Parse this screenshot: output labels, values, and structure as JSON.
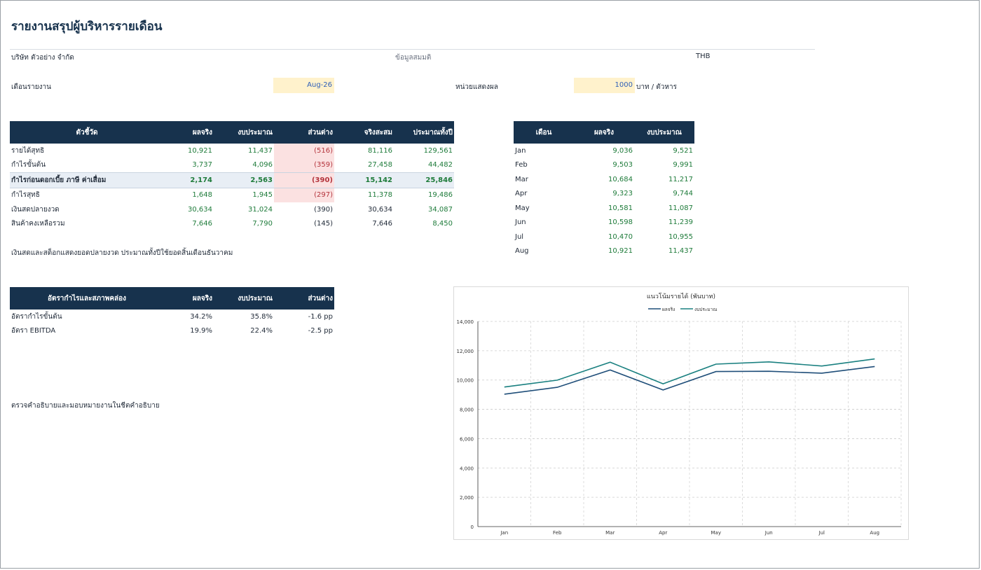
{
  "report": {
    "title": "รายงานสรุปผู้บริหารรายเดือน",
    "company": "บริษัท ตัวอย่าง จำกัด",
    "assumption_label": "ข้อมูลสมมติ",
    "currency": "THB",
    "month_label": "เดือนรายงาน",
    "month_value": "Aug-26",
    "unit_label": "หน่วยแสดงผล",
    "unit_value": "1000",
    "unit_suffix": "บาท / ตัวหาร"
  },
  "kpi": {
    "headers": [
      "ตัวชี้วัด",
      "ผลจริง",
      "งบประมาณ",
      "ส่วนต่าง",
      "จริงสะสม",
      "ประมาณทั้งปี"
    ],
    "rows": [
      {
        "name": "รายได้สุทธิ",
        "cells": [
          "10,921",
          "11,437",
          "(516)",
          "81,116",
          "129,561"
        ]
      },
      {
        "name": "กำไรขั้นต้น",
        "cells": [
          "3,737",
          "4,096",
          "(359)",
          "27,458",
          "44,482"
        ]
      },
      {
        "name": "กำไรก่อนดอกเบี้ย ภาษี ค่าเสื่อม",
        "cells": [
          "2,174",
          "2,563",
          "(390)",
          "15,142",
          "25,846"
        ]
      },
      {
        "name": "กำไรสุทธิ",
        "cells": [
          "1,648",
          "1,945",
          "(297)",
          "11,378",
          "19,486"
        ]
      },
      {
        "name": "เงินสดปลายงวด",
        "cells": [
          "30,634",
          "31,024",
          "(390)",
          "30,634",
          "34,087"
        ]
      },
      {
        "name": "สินค้าคงเหลือรวม",
        "cells": [
          "7,646",
          "7,790",
          "(145)",
          "7,646",
          "8,450"
        ]
      }
    ],
    "note": "เงินสดและสต็อกแสดงยอดปลายงวด ประมาณทั้งปีใช้ยอดสิ้นเดือนธันวาคม"
  },
  "monthly": {
    "headers": [
      "เดือน",
      "ผลจริง",
      "งบประมาณ"
    ],
    "rows": [
      {
        "month": "Jan",
        "actual": "9,036",
        "budget": "9,521"
      },
      {
        "month": "Feb",
        "actual": "9,503",
        "budget": "9,991"
      },
      {
        "month": "Mar",
        "actual": "10,684",
        "budget": "11,217"
      },
      {
        "month": "Apr",
        "actual": "9,323",
        "budget": "9,744"
      },
      {
        "month": "May",
        "actual": "10,581",
        "budget": "11,087"
      },
      {
        "month": "Jun",
        "actual": "10,598",
        "budget": "11,239"
      },
      {
        "month": "Jul",
        "actual": "10,470",
        "budget": "10,955"
      },
      {
        "month": "Aug",
        "actual": "10,921",
        "budget": "11,437"
      }
    ]
  },
  "ratios": {
    "headers": [
      "อัตรากำไรและสภาพคล่อง",
      "ผลจริง",
      "งบประมาณ",
      "ส่วนต่าง"
    ],
    "rows": [
      {
        "name": "อัตรากำไรขั้นต้น",
        "cells": [
          "34.2%",
          "35.8%",
          "-1.6 pp"
        ]
      },
      {
        "name": "อัตรา EBITDA",
        "cells": [
          "19.9%",
          "22.4%",
          "-2.5 pp"
        ]
      }
    ],
    "footnote": "ตรวจคำอธิบายและมอบหมายงานในชีตคำอธิบาย"
  },
  "colors": {
    "header_navy": "#17324d",
    "positive_green": "#1e7b3a",
    "negative_red": "#b4343c",
    "input_fill": "#fff2cc",
    "actual_line": "#1f4e79",
    "budget_line": "#1a8080"
  },
  "chart_data": {
    "type": "line",
    "title": "แนวโน้มรายได้ (พันบาท)",
    "categories": [
      "Jan",
      "Feb",
      "Mar",
      "Apr",
      "May",
      "Jun",
      "Jul",
      "Aug"
    ],
    "series": [
      {
        "name": "ผลจริง",
        "color": "#1f4e79",
        "values": [
          9036,
          9503,
          10684,
          9323,
          10581,
          10598,
          10470,
          10921
        ]
      },
      {
        "name": "งบประมาณ",
        "color": "#1a8080",
        "values": [
          9521,
          9991,
          11217,
          9744,
          11087,
          11239,
          10955,
          11437
        ]
      }
    ],
    "ylim": [
      0,
      14000
    ],
    "yticks": [
      "0",
      "2,000",
      "4,000",
      "6,000",
      "8,000",
      "10,000",
      "12,000",
      "14,000"
    ],
    "grid": true,
    "legend": "top"
  }
}
